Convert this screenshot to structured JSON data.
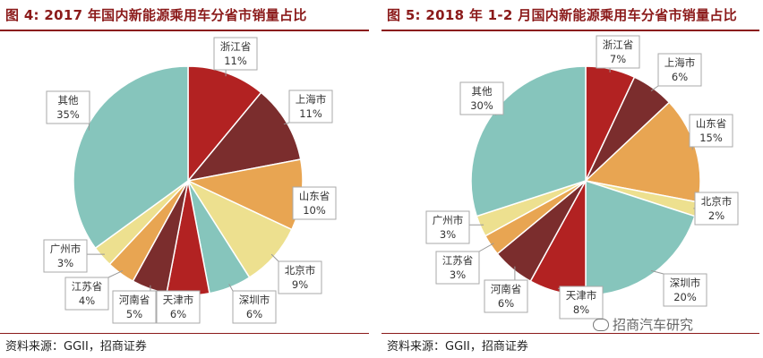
{
  "chart_data": [
    {
      "type": "pie",
      "title": "图 4:  2017 年国内新能源乘用车分省市销量占比",
      "source": "资料来源：GGII，招商证券",
      "slices": [
        {
          "name": "浙江省",
          "value": 11,
          "label": "11%",
          "color": "#b22222"
        },
        {
          "name": "上海市",
          "value": 11,
          "label": "11%",
          "color": "#7b2d2d"
        },
        {
          "name": "山东省",
          "value": 10,
          "label": "10%",
          "color": "#e8a552"
        },
        {
          "name": "北京市",
          "value": 9,
          "label": "9%",
          "color": "#ede08f"
        },
        {
          "name": "深圳市",
          "value": 6,
          "label": "6%",
          "color": "#86c5bc"
        },
        {
          "name": "天津市",
          "value": 6,
          "label": "6%",
          "color": "#b22222"
        },
        {
          "name": "河南省",
          "value": 5,
          "label": "5%",
          "color": "#7b2d2d"
        },
        {
          "name": "江苏省",
          "value": 4,
          "label": "4%",
          "color": "#e8a552"
        },
        {
          "name": "广州市",
          "value": 3,
          "label": "3%",
          "color": "#ede08f"
        },
        {
          "name": "其他",
          "value": 35,
          "label": "35%",
          "color": "#86c5bc"
        }
      ]
    },
    {
      "type": "pie",
      "title": "图 5:  2018 年 1-2 月国内新能源乘用车分省市销量占比",
      "source": "资料来源：GGII，招商证券",
      "slices": [
        {
          "name": "浙江省",
          "value": 7,
          "label": "7%",
          "color": "#b22222"
        },
        {
          "name": "上海市",
          "value": 6,
          "label": "6%",
          "color": "#7b2d2d"
        },
        {
          "name": "山东省",
          "value": 15,
          "label": "15%",
          "color": "#e8a552"
        },
        {
          "name": "北京市",
          "value": 2,
          "label": "2%",
          "color": "#ede08f"
        },
        {
          "name": "深圳市",
          "value": 20,
          "label": "20%",
          "color": "#86c5bc"
        },
        {
          "name": "天津市",
          "value": 8,
          "label": "8%",
          "color": "#b22222"
        },
        {
          "name": "河南省",
          "value": 6,
          "label": "6%",
          "color": "#7b2d2d"
        },
        {
          "name": "江苏省",
          "value": 3,
          "label": "3%",
          "color": "#e8a552"
        },
        {
          "name": "广州市",
          "value": 3,
          "label": "3%",
          "color": "#ede08f"
        },
        {
          "name": "其他",
          "value": 30,
          "label": "30%",
          "color": "#86c5bc"
        }
      ]
    }
  ],
  "watermark": "招商汽车研究"
}
